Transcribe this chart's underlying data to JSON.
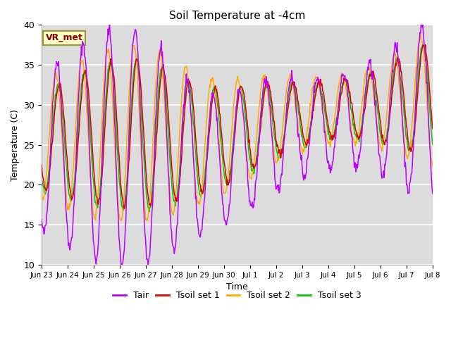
{
  "title": "Soil Temperature at -4cm",
  "xlabel": "Time",
  "ylabel": "Temperature (C)",
  "ylim": [
    10,
    40
  ],
  "bg_color": "#dcdcdc",
  "fig_color": "#ffffff",
  "line_colors": {
    "Tair": "#bb00ff",
    "Tsoil set 1": "#dd0000",
    "Tsoil set 2": "#ffaa00",
    "Tsoil set 3": "#00cc00"
  },
  "vr_met_label": "VR_met",
  "tick_labels": [
    "Jun 23",
    "Jun 24",
    "Jun 25",
    "Jun 26",
    "Jun 27",
    "Jun 28",
    "Jun 29",
    "Jun 30",
    "Jul 1",
    "Jul 2",
    "Jul 3",
    "Jul 4",
    "Jul 5",
    "Jul 6",
    "Jul 7",
    "Jul 8"
  ],
  "yticks": [
    10,
    15,
    20,
    25,
    30,
    35,
    40
  ]
}
